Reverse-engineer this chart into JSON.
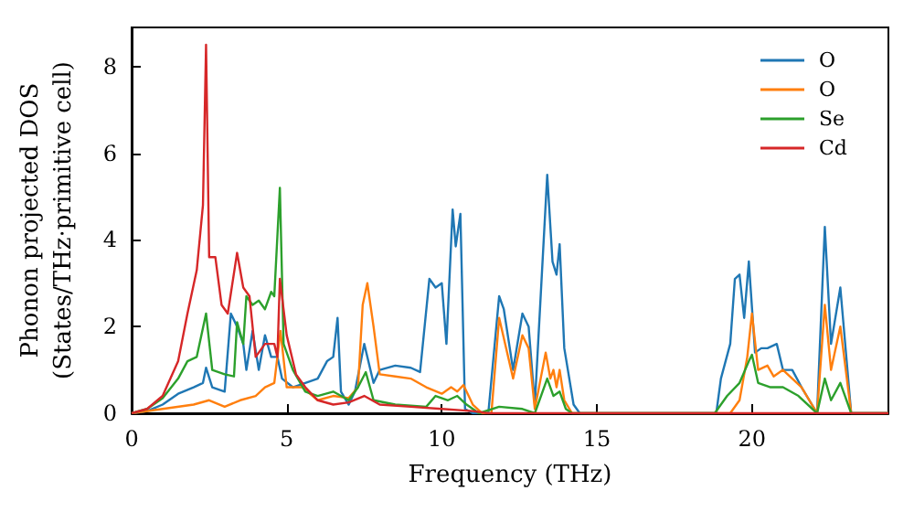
{
  "chart_data": {
    "type": "line",
    "xlabel": "Frequency (THz)",
    "ylabel": "Phonon projected DOS\n(States/THz·primitive cell)",
    "xlim": [
      0,
      24.4
    ],
    "ylim": [
      0,
      8.9
    ],
    "xticks": [
      0,
      5,
      10,
      15,
      20
    ],
    "yticks": [
      0,
      2,
      4,
      6,
      8
    ],
    "grid": false,
    "legend": "top right",
    "marker": "none",
    "line_style": "solid",
    "series": [
      {
        "name": "O",
        "color": "#1f77b4",
        "x": [
          0,
          0.5,
          1,
          1.5,
          2,
          2.3,
          2.4,
          2.6,
          3,
          3.2,
          3.4,
          3.6,
          3.7,
          3.9,
          4.1,
          4.3,
          4.5,
          4.7,
          4.85,
          5.2,
          5.6,
          6,
          6.3,
          6.5,
          6.64,
          6.75,
          7,
          7.2,
          7.5,
          7.8,
          8,
          8.5,
          9,
          9.3,
          9.6,
          9.8,
          10,
          10.15,
          10.35,
          10.45,
          10.6,
          10.75,
          11,
          11.5,
          11.85,
          12,
          12.3,
          12.6,
          12.8,
          13,
          13.4,
          13.57,
          13.7,
          13.8,
          13.95,
          14.25,
          14.45,
          18.85,
          19,
          19.3,
          19.45,
          19.6,
          19.75,
          19.9,
          20.1,
          20.3,
          20.5,
          20.8,
          21,
          21.3,
          21.6,
          22.1,
          22.35,
          22.55,
          22.85,
          23.2,
          24.4
        ],
        "values": [
          0,
          0.05,
          0.2,
          0.45,
          0.6,
          0.7,
          1.05,
          0.6,
          0.5,
          2.3,
          2,
          1.6,
          1,
          1.9,
          1,
          1.8,
          1.3,
          1.3,
          0.8,
          0.6,
          0.7,
          0.8,
          1.2,
          1.3,
          2.2,
          0.5,
          0.2,
          0.5,
          1.6,
          0.7,
          1,
          1.1,
          1.05,
          0.95,
          3.1,
          2.9,
          3,
          1.6,
          4.7,
          3.85,
          4.6,
          0.1,
          0,
          0,
          2.7,
          2.4,
          1,
          2.3,
          2,
          0.2,
          5.5,
          3.5,
          3.2,
          3.9,
          1.5,
          0.2,
          0,
          0,
          0.8,
          1.6,
          3.1,
          3.2,
          2.2,
          3.5,
          1.4,
          1.5,
          1.5,
          1.6,
          1,
          1,
          0.6,
          0,
          4.3,
          1.6,
          2.9,
          0,
          0
        ]
      },
      {
        "name": "O",
        "color": "#ff7f0e",
        "x": [
          0,
          1,
          2,
          2.5,
          3,
          3.5,
          4,
          4.3,
          4.6,
          4.8,
          5,
          5.5,
          6,
          6.5,
          7,
          7.3,
          7.45,
          7.6,
          7.8,
          8,
          8.5,
          9,
          9.5,
          10,
          10.3,
          10.5,
          10.7,
          11,
          11.3,
          11.6,
          11.85,
          12.3,
          12.6,
          12.8,
          13,
          13.35,
          13.5,
          13.6,
          13.7,
          13.8,
          13.95,
          14.2,
          19.3,
          19.6,
          19.85,
          20,
          20.2,
          20.5,
          20.7,
          21,
          21.3,
          21.6,
          22.1,
          22.35,
          22.55,
          22.85,
          23.2,
          24.4
        ],
        "values": [
          0,
          0.1,
          0.2,
          0.3,
          0.15,
          0.3,
          0.4,
          0.6,
          0.7,
          1.9,
          0.6,
          0.6,
          0.3,
          0.4,
          0.35,
          0.6,
          2.5,
          3,
          2,
          0.9,
          0.85,
          0.8,
          0.6,
          0.45,
          0.6,
          0.5,
          0.65,
          0.2,
          0,
          0,
          2.2,
          0.8,
          1.8,
          1.5,
          0.1,
          1.4,
          0.8,
          1,
          0.6,
          1,
          0.3,
          0,
          0,
          0.3,
          1.3,
          2.3,
          1,
          1.1,
          0.85,
          1,
          0.8,
          0.6,
          0,
          2.5,
          1,
          2,
          0,
          0
        ]
      },
      {
        "name": "Se",
        "color": "#2ca02c",
        "x": [
          0,
          0.5,
          1,
          1.5,
          1.8,
          2.1,
          2.4,
          2.6,
          3,
          3.3,
          3.4,
          3.6,
          3.7,
          3.9,
          4.1,
          4.3,
          4.5,
          4.6,
          4.78,
          4.9,
          5.2,
          5.6,
          6,
          6.5,
          7,
          7.3,
          7.55,
          7.8,
          8.5,
          9.5,
          9.8,
          10.2,
          10.5,
          10.8,
          11.2,
          11.85,
          12.6,
          13,
          13.4,
          13.6,
          13.8,
          14,
          14.2,
          18.8,
          19.2,
          19.6,
          19.9,
          20,
          20.2,
          20.6,
          21,
          21.5,
          22.1,
          22.35,
          22.55,
          22.85,
          23.2,
          24.4
        ],
        "values": [
          0,
          0.1,
          0.35,
          0.8,
          1.2,
          1.3,
          2.3,
          1,
          0.9,
          0.85,
          2.1,
          1.6,
          2.7,
          2.5,
          2.6,
          2.4,
          2.8,
          2.7,
          5.2,
          1.6,
          1,
          0.5,
          0.4,
          0.5,
          0.3,
          0.6,
          0.95,
          0.3,
          0.2,
          0.15,
          0.4,
          0.3,
          0.4,
          0.2,
          0,
          0.15,
          0.1,
          0,
          0.8,
          0.4,
          0.5,
          0.1,
          0,
          0,
          0.4,
          0.7,
          1.2,
          1.35,
          0.7,
          0.6,
          0.6,
          0.4,
          0,
          0.8,
          0.3,
          0.7,
          0,
          0
        ]
      },
      {
        "name": "Cd",
        "color": "#d62728",
        "x": [
          0,
          0.5,
          1,
          1.5,
          1.8,
          2.1,
          2.3,
          2.4,
          2.5,
          2.7,
          2.9,
          3.1,
          3.4,
          3.6,
          3.8,
          4,
          4.3,
          4.6,
          4.7,
          4.78,
          5,
          5.3,
          5.6,
          6,
          6.5,
          7,
          7.5,
          8,
          9,
          10,
          11,
          11.5,
          24.4
        ],
        "values": [
          0,
          0.1,
          0.4,
          1.2,
          2.3,
          3.3,
          4.8,
          8.5,
          3.6,
          3.6,
          2.5,
          2.3,
          3.7,
          2.9,
          2.7,
          1.3,
          1.6,
          1.6,
          1.3,
          3.1,
          1.8,
          0.9,
          0.6,
          0.3,
          0.2,
          0.25,
          0.4,
          0.2,
          0.15,
          0.1,
          0.05,
          0,
          0
        ]
      }
    ]
  }
}
